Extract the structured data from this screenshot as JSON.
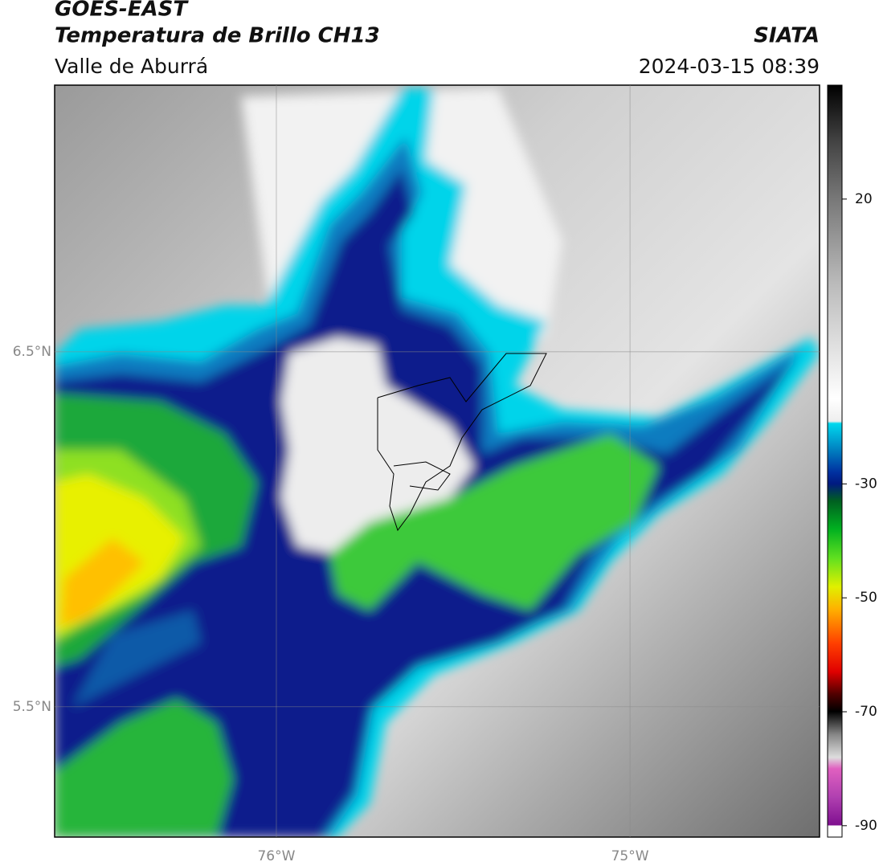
{
  "header": {
    "satellite": "GOES-EAST",
    "product": "Temperatura de Brillo CH13",
    "region": "Valle de Aburrá",
    "source": "SIATA",
    "datetime": "2024-03-15 08:39"
  },
  "map": {
    "lon_range": [
      -76.627,
      -74.464
    ],
    "lat_range": [
      5.133,
      7.251
    ],
    "lat_lines": [
      {
        "value": 6.5,
        "label": "6.5°N"
      },
      {
        "value": 5.5,
        "label": "5.5°N"
      }
    ],
    "lon_lines": [
      {
        "value": -76,
        "label": "76°W"
      },
      {
        "value": -75,
        "label": "75°W"
      }
    ]
  },
  "colorbar": {
    "lim": [
      -92,
      40
    ],
    "ticks": [
      20,
      -30,
      -50,
      -70,
      -90
    ]
  }
}
